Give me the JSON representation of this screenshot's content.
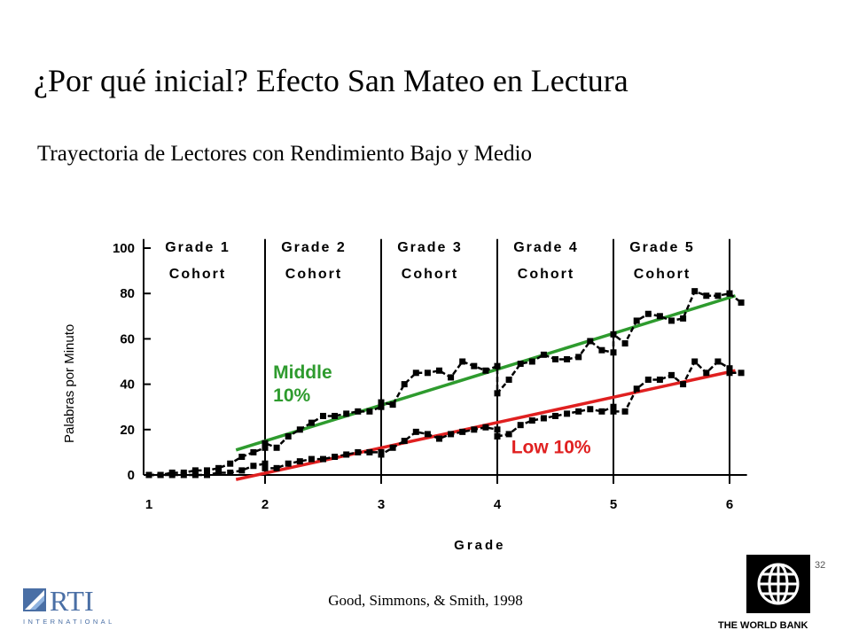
{
  "slide": {
    "title": "¿Por qué inicial? Efecto San Mateo en Lectura",
    "subtitle": "Trayectoria de Lectores con Rendimiento Bajo y Medio",
    "citation": "Good, Simmons, & Smith, 1998",
    "page_number": "32",
    "logo_left_text": "RTI",
    "logo_left_subtext": "INTERNATIONAL",
    "logo_right_label": "THE WORLD BANK"
  },
  "chart_data": {
    "type": "line",
    "xlabel": "Grade",
    "ylabel": "Palabras por Minuto",
    "xlim": [
      1,
      6.15
    ],
    "ylim": [
      0,
      100
    ],
    "x_ticks": [
      1,
      2,
      3,
      4,
      5,
      6
    ],
    "y_ticks": [
      0,
      20,
      40,
      60,
      80,
      100
    ],
    "grid": false,
    "cohorts": [
      {
        "line1": "Grade 1",
        "line2": "Cohort"
      },
      {
        "line1": "Grade 2",
        "line2": "Cohort"
      },
      {
        "line1": "Grade 3",
        "line2": "Cohort"
      },
      {
        "line1": "Grade 4",
        "line2": "Cohort"
      },
      {
        "line1": "Grade 5",
        "line2": "Cohort"
      }
    ],
    "series": [
      {
        "name": "Middle 10%",
        "label_lines": [
          "Middle",
          "10%"
        ],
        "color": "#000000",
        "x": [
          1.0,
          1.1,
          1.2,
          1.3,
          1.4,
          1.5,
          1.6,
          1.7,
          1.8,
          1.9,
          2.0,
          2.0,
          2.1,
          2.2,
          2.3,
          2.4,
          2.5,
          2.6,
          2.7,
          2.8,
          2.9,
          3.0,
          3.0,
          3.1,
          3.2,
          3.3,
          3.4,
          3.5,
          3.6,
          3.7,
          3.8,
          3.9,
          4.0,
          4.0,
          4.1,
          4.2,
          4.3,
          4.4,
          4.5,
          4.6,
          4.7,
          4.8,
          4.9,
          5.0,
          5.0,
          5.1,
          5.2,
          5.3,
          5.4,
          5.5,
          5.6,
          5.7,
          5.8,
          5.9,
          6.0,
          6.0,
          6.1
        ],
        "y": [
          0,
          0,
          1,
          1,
          2,
          2,
          3,
          5,
          8,
          10,
          12,
          14,
          12,
          17,
          20,
          23,
          26,
          26,
          27,
          28,
          28,
          30,
          32,
          31,
          40,
          45,
          45,
          46,
          43,
          50,
          48,
          46,
          48,
          36,
          42,
          49,
          50,
          53,
          51,
          51,
          52,
          59,
          55,
          54,
          62,
          58,
          68,
          71,
          70,
          68,
          69,
          81,
          79,
          79,
          80,
          80,
          76
        ]
      },
      {
        "name": "Low 10%",
        "label_lines": [
          "Low 10%"
        ],
        "color": "#000000",
        "x": [
          1.0,
          1.1,
          1.2,
          1.3,
          1.4,
          1.5,
          1.6,
          1.7,
          1.8,
          1.9,
          2.0,
          2.0,
          2.1,
          2.2,
          2.3,
          2.4,
          2.5,
          2.6,
          2.7,
          2.8,
          2.9,
          3.0,
          3.0,
          3.1,
          3.2,
          3.3,
          3.4,
          3.5,
          3.6,
          3.7,
          3.8,
          3.9,
          4.0,
          4.0,
          4.1,
          4.2,
          4.3,
          4.4,
          4.5,
          4.6,
          4.7,
          4.8,
          4.9,
          5.0,
          5.0,
          5.1,
          5.2,
          5.3,
          5.4,
          5.5,
          5.6,
          5.7,
          5.8,
          5.9,
          6.0,
          6.0,
          6.1
        ],
        "y": [
          0,
          0,
          0,
          0,
          0,
          0,
          1,
          1,
          2,
          4,
          5,
          3,
          3,
          5,
          6,
          7,
          7,
          8,
          9,
          10,
          10,
          10,
          9,
          12,
          15,
          19,
          18,
          16,
          18,
          19,
          20,
          21,
          20,
          17,
          18,
          22,
          24,
          25,
          26,
          27,
          28,
          29,
          28,
          30,
          28,
          28,
          38,
          42,
          42,
          44,
          40,
          50,
          45,
          50,
          47,
          45,
          45
        ]
      }
    ],
    "trend_lines": [
      {
        "name": "Middle 10%",
        "color": "#2e9b2e",
        "x": [
          1.75,
          6.05
        ],
        "y": [
          11,
          79
        ]
      },
      {
        "name": "Low 10%",
        "color": "#e02020",
        "x": [
          1.75,
          6.05
        ],
        "y": [
          -2,
          46
        ]
      }
    ],
    "annotation_colors": {
      "middle": "#2e9b2e",
      "low": "#e02020"
    }
  }
}
